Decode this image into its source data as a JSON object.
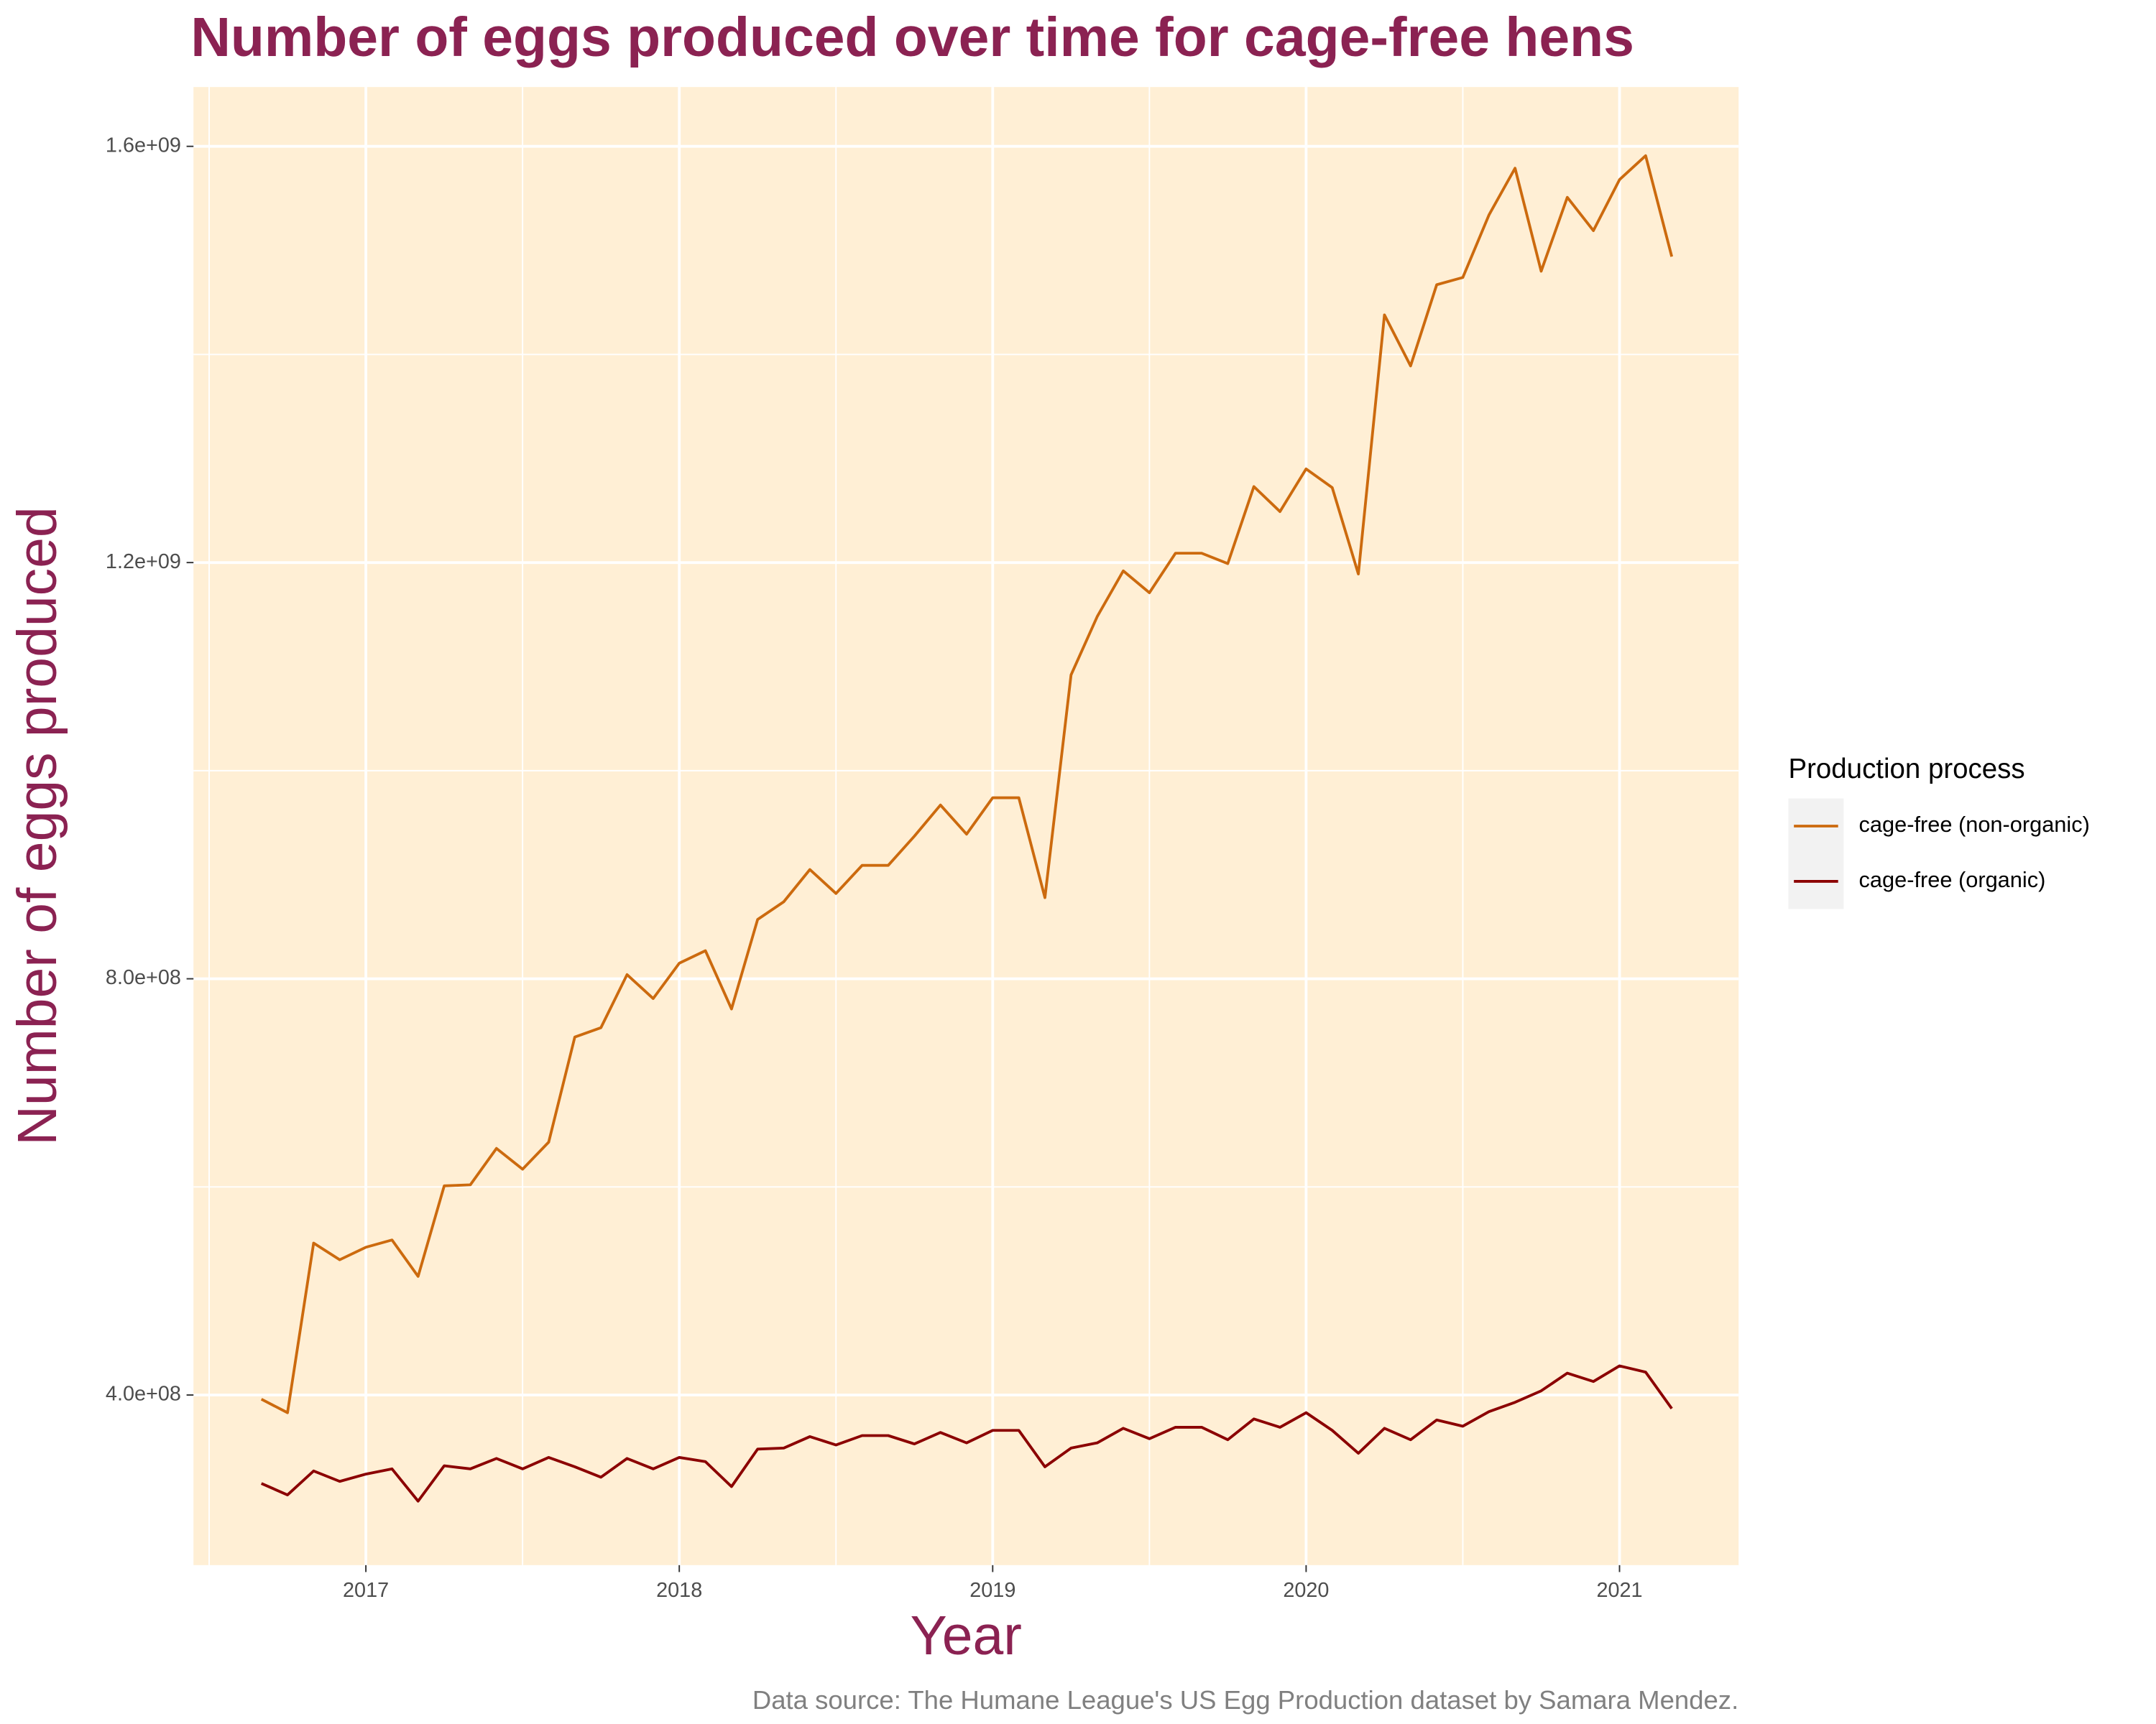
{
  "chart_data": {
    "type": "line",
    "title": "Number of eggs produced over time for cage-free hens",
    "xlabel": "Year",
    "ylabel": "Number of eggs produced",
    "caption": "Data source: The Humane League's US Egg Production dataset by Samara Mendez.",
    "legend_title": "Production process",
    "legend": "right",
    "grid": true,
    "background": "#FFEFD5",
    "x": [
      "2016-09",
      "2016-10",
      "2016-11",
      "2016-12",
      "2017-01",
      "2017-02",
      "2017-03",
      "2017-04",
      "2017-05",
      "2017-06",
      "2017-07",
      "2017-08",
      "2017-09",
      "2017-10",
      "2017-11",
      "2017-12",
      "2018-01",
      "2018-02",
      "2018-03",
      "2018-04",
      "2018-05",
      "2018-06",
      "2018-07",
      "2018-08",
      "2018-09",
      "2018-10",
      "2018-11",
      "2018-12",
      "2019-01",
      "2019-02",
      "2019-03",
      "2019-04",
      "2019-05",
      "2019-06",
      "2019-07",
      "2019-08",
      "2019-09",
      "2019-10",
      "2019-11",
      "2019-12",
      "2020-01",
      "2020-02",
      "2020-03",
      "2020-04",
      "2020-05",
      "2020-06",
      "2020-07",
      "2020-08",
      "2020-09",
      "2020-10",
      "2020-11",
      "2020-12",
      "2021-01",
      "2021-02",
      "2021-03"
    ],
    "series": [
      {
        "name": "cage-free (non-organic)",
        "color": "#CC6A0E",
        "values": [
          396000000,
          383000000,
          546000000,
          530000000,
          542000000,
          549000000,
          514000000,
          601000000,
          602000000,
          637000000,
          617000000,
          643000000,
          744000000,
          753000000,
          804000000,
          781000000,
          815000000,
          827000000,
          771000000,
          857000000,
          874000000,
          905000000,
          882000000,
          909000000,
          909000000,
          937000000,
          967000000,
          939000000,
          974000000,
          974000000,
          878000000,
          1092000000,
          1148000000,
          1192000000,
          1171000000,
          1209000000,
          1209000000,
          1199000000,
          1273000000,
          1249000000,
          1290000000,
          1272000000,
          1189000000,
          1438000000,
          1389000000,
          1467000000,
          1474000000,
          1534000000,
          1579000000,
          1480000000,
          1551000000,
          1519000000,
          1568000000,
          1591000000,
          1494000000
        ]
      },
      {
        "name": "cage-free (organic)",
        "color": "#8B0000",
        "values": [
          315000000,
          304000000,
          327000000,
          317000000,
          324000000,
          329000000,
          298000000,
          332000000,
          329000000,
          339000000,
          329000000,
          340000000,
          331000000,
          321000000,
          339000000,
          329000000,
          340000000,
          336000000,
          312000000,
          348000000,
          349000000,
          360000000,
          352000000,
          361000000,
          361000000,
          353000000,
          364000000,
          354000000,
          366000000,
          366000000,
          331000000,
          349000000,
          354000000,
          368000000,
          358000000,
          369000000,
          369000000,
          357000000,
          377000000,
          369000000,
          383000000,
          366000000,
          344000000,
          368000000,
          357000000,
          376000000,
          370000000,
          384000000,
          393000000,
          404000000,
          421000000,
          413000000,
          428000000,
          422000000,
          387000000
        ]
      }
    ],
    "xlim": [
      2016.45,
      2021.38
    ],
    "xticks": [
      2017,
      2018,
      2019,
      2020,
      2021
    ],
    "minor_xticks": [
      2016.5,
      2017.5,
      2018.5,
      2019.5,
      2020.5
    ],
    "ylim": [
      236500000,
      1657000000
    ],
    "yticks": [
      {
        "value": 400000000,
        "label": "4.0e+08"
      },
      {
        "value": 800000000,
        "label": "8.0e+08"
      },
      {
        "value": 1200000000,
        "label": "1.2e+09"
      },
      {
        "value": 1600000000,
        "label": "1.6e+09"
      }
    ],
    "minor_yticks": [
      600000000,
      1000000000,
      1400000000
    ]
  }
}
